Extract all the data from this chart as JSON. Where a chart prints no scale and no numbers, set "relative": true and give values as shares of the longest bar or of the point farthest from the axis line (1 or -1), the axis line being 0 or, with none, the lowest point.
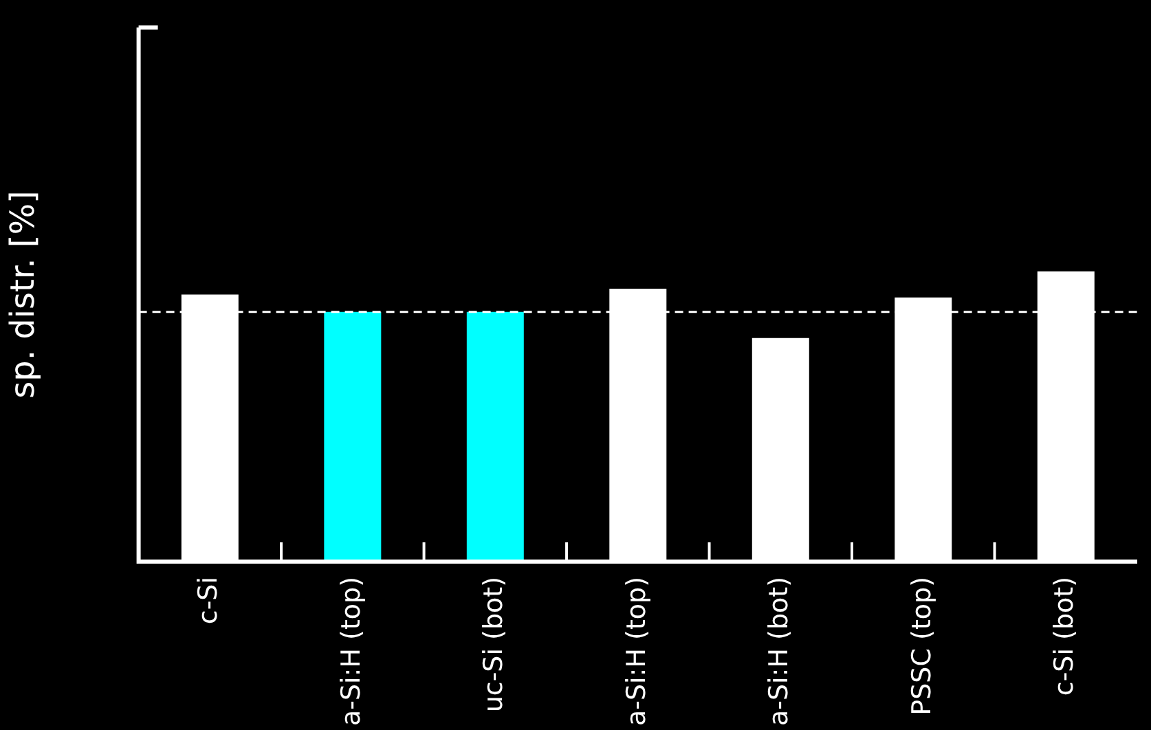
{
  "chart_data": {
    "type": "bar",
    "ylabel": "sp. distr. [%]",
    "categories": [
      "c-Si",
      "a-Si:H (top)",
      "uc-Si (bot)",
      "a-Si:H (top)",
      "a-Si:H (bot)",
      "PSSC (top)",
      "c-Si (bot)"
    ],
    "values": [
      0.92,
      0.86,
      0.86,
      0.94,
      0.77,
      0.91,
      1
    ],
    "colors": [
      "#ffffff",
      "#00ffff",
      "#00ffff",
      "#ffffff",
      "#ffffff",
      "#ffffff",
      "#ffffff"
    ],
    "relative": true,
    "ref_lines": [
      {
        "axis": "y",
        "value": 0.86,
        "color": "#ffffff",
        "line_style": "dashed"
      }
    ],
    "legend": false
  }
}
